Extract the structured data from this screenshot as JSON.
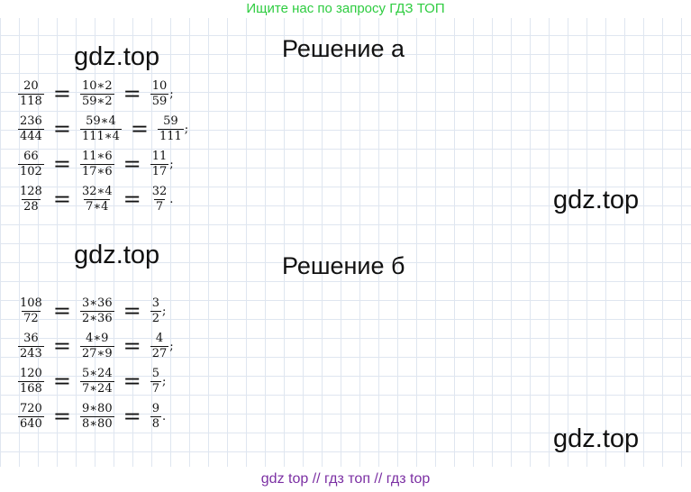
{
  "banner_top": "Ищите нас по запросу ГДЗ ТОП",
  "banner_bottom": "gdz top  //  гдз топ  //  гдз top",
  "watermarks": [
    "gdz.top",
    "gdz.top",
    "gdz.top",
    "gdz.top"
  ],
  "section_a": {
    "title": "Решение а",
    "rows": [
      {
        "f1": [
          "20",
          "118"
        ],
        "f2": [
          "10∗2",
          "59∗2"
        ],
        "f3": [
          "10",
          "59"
        ],
        "end": ";"
      },
      {
        "f1": [
          "236",
          "444"
        ],
        "f2": [
          "59∗4",
          "111∗4"
        ],
        "f3": [
          "59",
          "111"
        ],
        "end": ";"
      },
      {
        "f1": [
          "66",
          "102"
        ],
        "f2": [
          "11∗6",
          "17∗6"
        ],
        "f3": [
          "11",
          "17"
        ],
        "end": ";"
      },
      {
        "f1": [
          "128",
          "28"
        ],
        "f2": [
          "32∗4",
          "7∗4"
        ],
        "f3": [
          "32",
          "7"
        ],
        "end": "."
      }
    ]
  },
  "section_b": {
    "title": "Решение б",
    "rows": [
      {
        "f1": [
          "108",
          "72"
        ],
        "f2": [
          "3∗36",
          "2∗36"
        ],
        "f3": [
          "3",
          "2"
        ],
        "end": ";"
      },
      {
        "f1": [
          "36",
          "243"
        ],
        "f2": [
          "4∗9",
          "27∗9"
        ],
        "f3": [
          "4",
          "27"
        ],
        "end": ";"
      },
      {
        "f1": [
          "120",
          "168"
        ],
        "f2": [
          "5∗24",
          "7∗24"
        ],
        "f3": [
          "5",
          "7"
        ],
        "end": ";"
      },
      {
        "f1": [
          "720",
          "640"
        ],
        "f2": [
          "9∗80",
          "8∗80"
        ],
        "f3": [
          "9",
          "8"
        ],
        "end": "."
      }
    ]
  },
  "equals_sign": "="
}
